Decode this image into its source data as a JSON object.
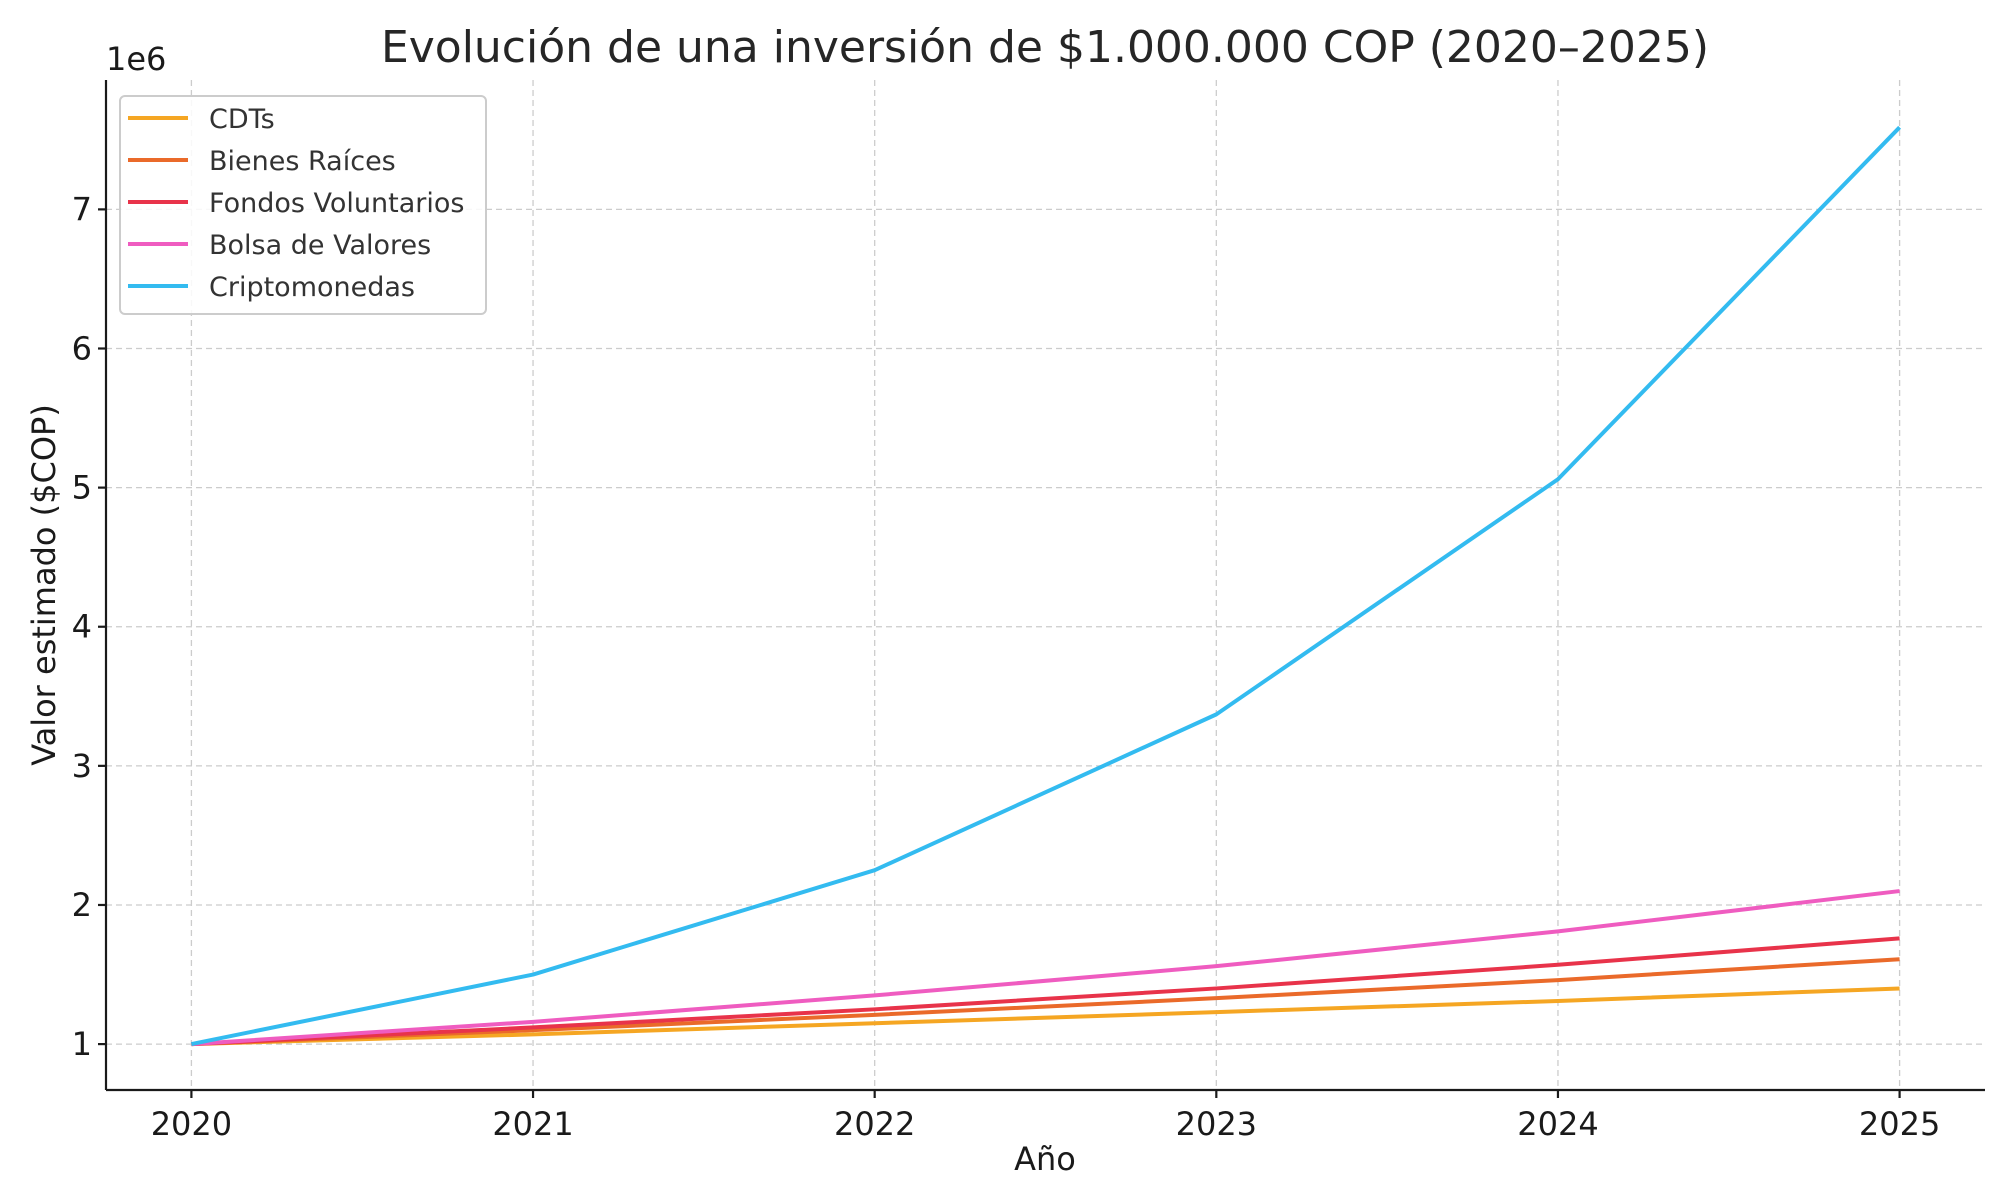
{
  "chart_data": {
    "type": "line",
    "title": "Evolución de una inversión de $1.000.000 COP (2020–2025)",
    "xlabel": "Año",
    "ylabel": "Valor estimado ($COP)",
    "y_offset_label": "1e6",
    "x": [
      2020,
      2021,
      2022,
      2023,
      2024,
      2025
    ],
    "x_tick_labels": [
      "2020",
      "2021",
      "2022",
      "2023",
      "2024",
      "2025"
    ],
    "y_ticks": [
      1,
      2,
      3,
      4,
      5,
      6,
      7
    ],
    "y_tick_labels": [
      "1",
      "2",
      "3",
      "4",
      "5",
      "6",
      "7"
    ],
    "xlim": [
      2019.75,
      2025.25
    ],
    "ylim": [
      0.67,
      7.93
    ],
    "y_scale_note": "values in millions (×1e6)",
    "grid": true,
    "legend_position": "upper-left",
    "series": [
      {
        "name": "CDTs",
        "color": "#f5a623",
        "values": [
          1.0,
          1.07,
          1.15,
          1.23,
          1.31,
          1.4
        ]
      },
      {
        "name": "Bienes Raíces",
        "color": "#ea6a2a",
        "values": [
          1.0,
          1.1,
          1.21,
          1.33,
          1.46,
          1.61
        ]
      },
      {
        "name": "Fondos Voluntarios",
        "color": "#e8334a",
        "values": [
          1.0,
          1.12,
          1.25,
          1.4,
          1.57,
          1.76
        ]
      },
      {
        "name": "Bolsa de Valores",
        "color": "#ef5cc0",
        "values": [
          1.0,
          1.16,
          1.35,
          1.56,
          1.81,
          2.1
        ]
      },
      {
        "name": "Criptomonedas",
        "color": "#33bbf0",
        "values": [
          1.0,
          1.5,
          2.25,
          3.37,
          5.06,
          7.59
        ]
      }
    ]
  }
}
